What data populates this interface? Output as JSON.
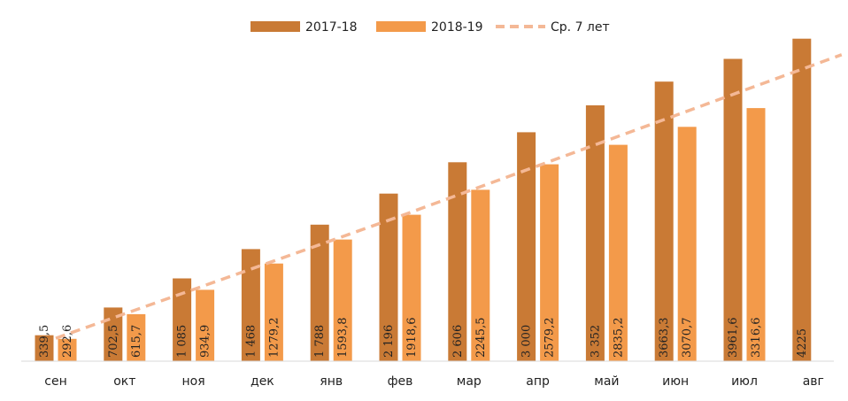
{
  "chart_data": {
    "type": "bar",
    "categories": [
      "сен",
      "окт",
      "ноя",
      "дек",
      "янв",
      "фев",
      "мар",
      "апр",
      "май",
      "июн",
      "июл",
      "авг"
    ],
    "series": [
      {
        "name": "2017-18",
        "color": "#c97a35",
        "values": [
          339.5,
          702.5,
          1085,
          1468,
          1788,
          2196,
          2606,
          3000,
          3352,
          3663.3,
          3961.6,
          4225
        ],
        "labels": [
          "339,5",
          "702,5",
          "1 085",
          "1 468",
          "1 788",
          "2 196",
          "2 606",
          "3 000",
          "3 352",
          "3663,3",
          "3961,6",
          "4225"
        ]
      },
      {
        "name": "2018-19",
        "color": "#f39a4a",
        "values": [
          292.6,
          615.7,
          934.9,
          1279.2,
          1593.8,
          1918.6,
          2245.5,
          2579.2,
          2835.2,
          3070.7,
          3316.6,
          null
        ],
        "labels": [
          "292,6",
          "615,7",
          "934,9",
          "1279,2",
          "1593,8",
          "1918,6",
          "2245,5",
          "2579,2",
          "2835,2",
          "3070,7",
          "3316,6",
          ""
        ]
      }
    ],
    "trend": {
      "name": "Ср. 7 лет",
      "type": "line",
      "style": "dashed",
      "color": "#f4b896",
      "values": [
        300,
        620,
        940,
        1260,
        1580,
        1900,
        2230,
        2560,
        2890,
        3220,
        3550,
        3880
      ]
    },
    "ylim": [
      0,
      4280
    ],
    "grid": false,
    "legend_position": "top"
  }
}
